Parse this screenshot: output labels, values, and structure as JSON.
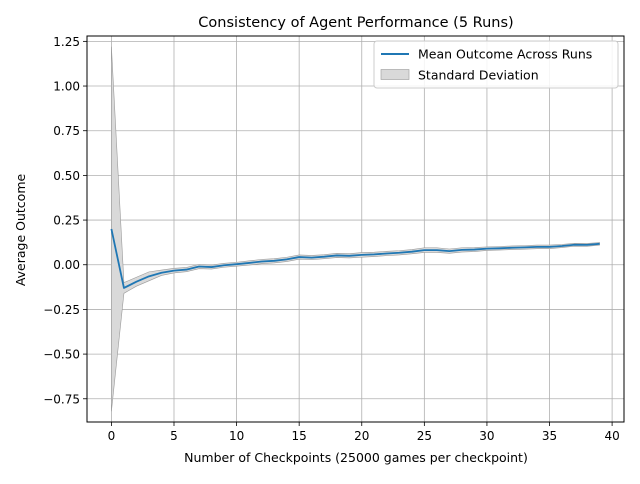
{
  "chart_data": {
    "type": "line",
    "title": "Consistency of Agent Performance (5 Runs)",
    "xlabel": "Number of Checkpoints (25000 games per checkpoint)",
    "ylabel": "Average Outcome",
    "xlim": [
      -1.95,
      40.95
    ],
    "ylim": [
      -0.88,
      1.28
    ],
    "xticks": [
      0,
      5,
      10,
      15,
      20,
      25,
      30,
      35,
      40
    ],
    "yticks": [
      -0.75,
      -0.5,
      -0.25,
      0.0,
      0.25,
      0.5,
      0.75,
      1.0,
      1.25
    ],
    "xtick_labels": [
      "0",
      "5",
      "10",
      "15",
      "20",
      "25",
      "30",
      "35",
      "40"
    ],
    "ytick_labels": [
      "−0.75",
      "−0.50",
      "−0.25",
      "0.00",
      "0.25",
      "0.50",
      "0.75",
      "1.00",
      "1.25"
    ],
    "grid": true,
    "legend_position": "top-right",
    "series": [
      {
        "name": "Mean Outcome Across Runs",
        "color": "#1f77b4",
        "x": [
          0,
          1,
          2,
          3,
          4,
          5,
          6,
          7,
          8,
          9,
          10,
          11,
          12,
          13,
          14,
          15,
          16,
          17,
          18,
          19,
          20,
          21,
          22,
          23,
          24,
          25,
          26,
          27,
          28,
          29,
          30,
          31,
          32,
          33,
          34,
          35,
          36,
          37,
          38,
          39
        ],
        "values": [
          0.2,
          -0.13,
          -0.095,
          -0.065,
          -0.045,
          -0.033,
          -0.027,
          -0.01,
          -0.013,
          -0.003,
          0.003,
          0.01,
          0.018,
          0.022,
          0.03,
          0.043,
          0.04,
          0.045,
          0.052,
          0.05,
          0.055,
          0.058,
          0.063,
          0.067,
          0.073,
          0.082,
          0.082,
          0.076,
          0.083,
          0.085,
          0.09,
          0.092,
          0.095,
          0.097,
          0.1,
          0.1,
          0.105,
          0.112,
          0.111,
          0.117
        ]
      }
    ],
    "band": {
      "name": "Standard Deviation",
      "color": "#d9d9d9",
      "edge_color": "#9a9a9a",
      "upper": [
        1.22,
        -0.1,
        -0.07,
        -0.04,
        -0.03,
        -0.02,
        -0.015,
        0.002,
        -0.002,
        0.008,
        0.014,
        0.022,
        0.03,
        0.034,
        0.042,
        0.055,
        0.052,
        0.056,
        0.064,
        0.062,
        0.068,
        0.07,
        0.075,
        0.079,
        0.085,
        0.095,
        0.095,
        0.088,
        0.095,
        0.096,
        0.1,
        0.102,
        0.105,
        0.107,
        0.11,
        0.11,
        0.114,
        0.12,
        0.119,
        0.124
      ],
      "lower": [
        -0.82,
        -0.16,
        -0.12,
        -0.09,
        -0.06,
        -0.046,
        -0.039,
        -0.022,
        -0.024,
        -0.014,
        -0.008,
        -0.002,
        0.006,
        0.01,
        0.018,
        0.031,
        0.028,
        0.034,
        0.04,
        0.038,
        0.042,
        0.046,
        0.051,
        0.055,
        0.061,
        0.069,
        0.069,
        0.064,
        0.071,
        0.074,
        0.08,
        0.082,
        0.085,
        0.087,
        0.09,
        0.09,
        0.096,
        0.104,
        0.103,
        0.11
      ]
    }
  }
}
